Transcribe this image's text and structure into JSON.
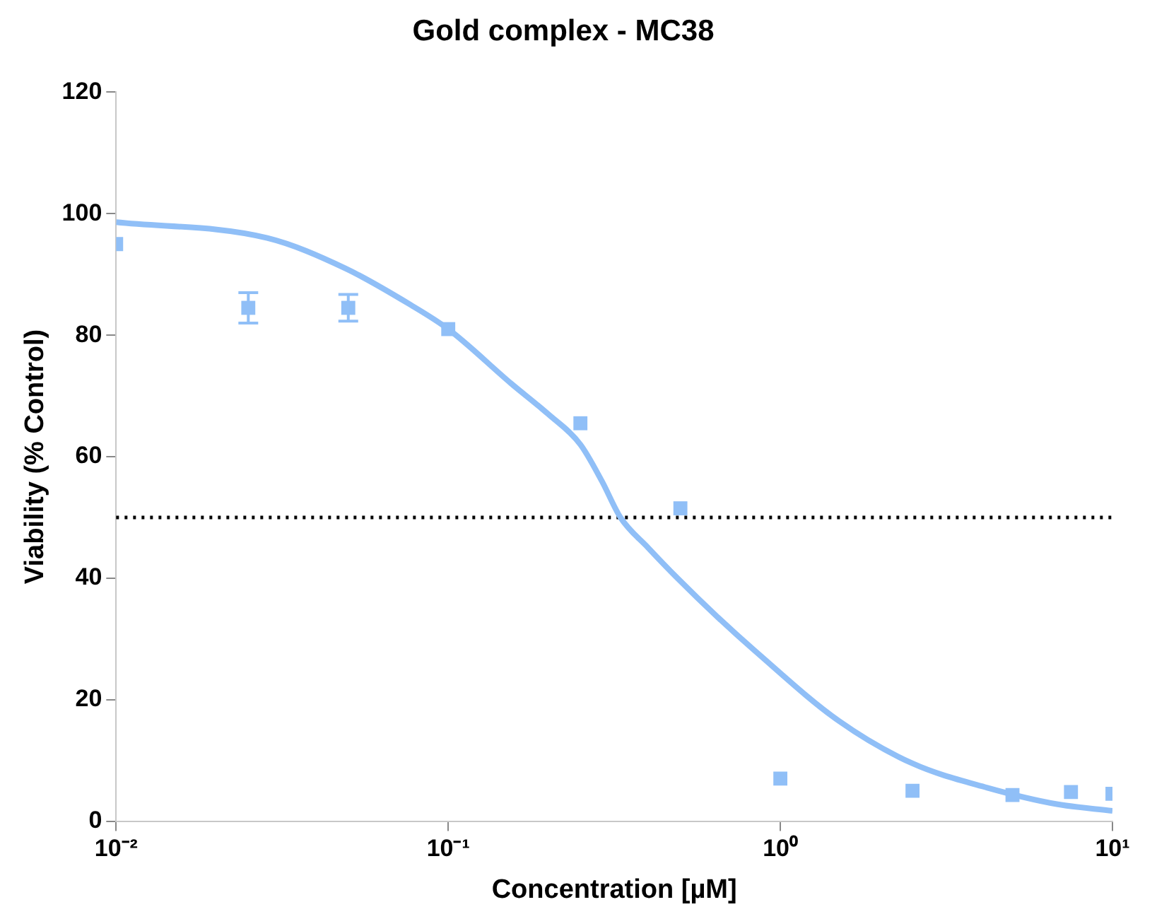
{
  "chart_data": {
    "type": "scatter",
    "title": "Gold complex - MC38",
    "xlabel": "Concentration [µM]",
    "ylabel": "Viability (% Control)",
    "log": "x",
    "xlim": [
      0.01,
      10
    ],
    "xticks": [
      {
        "value": 0.01,
        "label": "10⁻²"
      },
      {
        "value": 0.1,
        "label": "10⁻¹"
      },
      {
        "value": 1,
        "label": "10⁰"
      },
      {
        "value": 10,
        "label": "10¹"
      }
    ],
    "ylim": [
      0,
      120
    ],
    "yticks": [
      0,
      20,
      40,
      60,
      80,
      100,
      120
    ],
    "grid": false,
    "legend": false,
    "marker": "square",
    "series": [
      {
        "color": "#90bff7",
        "x": [
          0.01,
          0.025,
          0.05,
          0.1,
          0.25,
          0.5,
          1,
          2.5,
          5,
          7.5,
          10
        ],
        "values": [
          95,
          84.5,
          84.5,
          81,
          65.5,
          51.5,
          7,
          5,
          4.3,
          4.8,
          4.5
        ],
        "errors": [
          null,
          2.5,
          2.2,
          null,
          null,
          null,
          null,
          null,
          null,
          null,
          null
        ]
      },
      {
        "type": "line",
        "color": "#90bff7",
        "marker": "none",
        "x": [
          0.01,
          0.0285,
          0.049,
          0.077,
          0.1,
          0.155,
          0.2,
          0.25,
          0.29,
          0.33,
          0.4,
          0.49,
          0.65,
          0.84,
          1.5,
          2.5,
          4.2,
          6.8,
          10
        ],
        "values": [
          98.6,
          96,
          91,
          85,
          81,
          72,
          67,
          62,
          56,
          50,
          45,
          40,
          33.5,
          28,
          16.5,
          9.5,
          5.5,
          2.8,
          1.7
        ]
      }
    ],
    "ref_lines": [
      {
        "axis": "y",
        "value": 50,
        "line_style": "dotted",
        "color": "#000000"
      }
    ]
  }
}
